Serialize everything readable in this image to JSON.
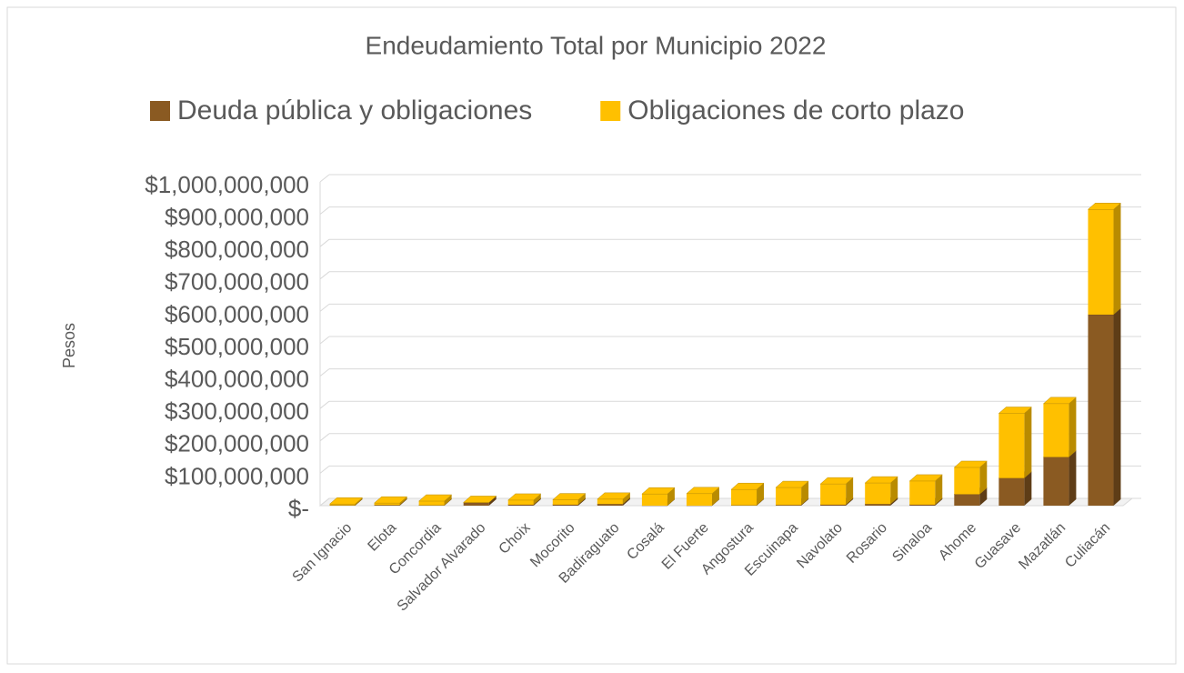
{
  "chart_data": {
    "type": "bar3d_stacked",
    "title": "Endeudamiento Total por Municipio 2022",
    "y_label": "Pesos",
    "categories": [
      "San Ignacio",
      "Elota",
      "Concordia",
      "Salvador Alvarado",
      "Choix",
      "Mocorito",
      "Badiraguato",
      "Cosalá",
      "El Fuerte",
      "Angostura",
      "Escuinapa",
      "Navolato",
      "Rosario",
      "Sinaloa",
      "Ahome",
      "Guasave",
      "Mazatlán",
      "Culiacán"
    ],
    "series": [
      {
        "name": "Deuda pública y obligaciones",
        "color": "#8a5a22",
        "side": "#5e3d17",
        "values": [
          1000000,
          2000000,
          1000000,
          9000000,
          3000000,
          3000000,
          5000000,
          0,
          0,
          1000000,
          2000000,
          3000000,
          5000000,
          3000000,
          35000000,
          85000000,
          150000000,
          590000000
        ]
      },
      {
        "name": "Obligaciones de corto plazo",
        "color": "#ffc000",
        "side": "#b98b00",
        "values": [
          4000000,
          6000000,
          13000000,
          1000000,
          14000000,
          15000000,
          15000000,
          36000000,
          37000000,
          49000000,
          54000000,
          64000000,
          65000000,
          73000000,
          83000000,
          200000000,
          165000000,
          325000000
        ]
      }
    ],
    "ylim": [
      0,
      1000000000
    ],
    "yticks": [
      {
        "value": 0,
        "label": "$-"
      },
      {
        "value": 100000000,
        "label": "$100,000,000"
      },
      {
        "value": 200000000,
        "label": "$200,000,000"
      },
      {
        "value": 300000000,
        "label": "$300,000,000"
      },
      {
        "value": 400000000,
        "label": "$400,000,000"
      },
      {
        "value": 500000000,
        "label": "$500,000,000"
      },
      {
        "value": 600000000,
        "label": "$600,000,000"
      },
      {
        "value": 700000000,
        "label": "$700,000,000"
      },
      {
        "value": 800000000,
        "label": "$800,000,000"
      },
      {
        "value": 900000000,
        "label": "$900,000,000"
      },
      {
        "value": 1000000000,
        "label": "$1,000,000,000"
      }
    ],
    "grid": true
  }
}
